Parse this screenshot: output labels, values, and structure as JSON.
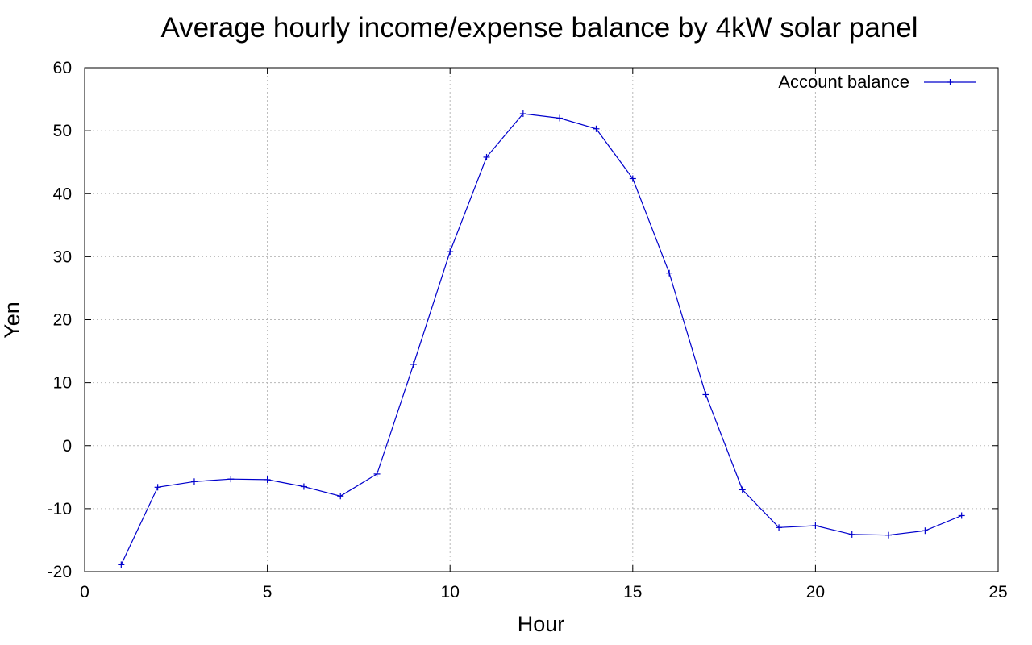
{
  "chart_data": {
    "type": "line",
    "title": "Average hourly income/expense balance by 4kW solar panel",
    "xlabel": "Hour",
    "ylabel": "Yen",
    "xlim": [
      0,
      25
    ],
    "ylim": [
      -20,
      60
    ],
    "xticks": [
      0,
      5,
      10,
      15,
      20,
      25
    ],
    "yticks": [
      -20,
      -10,
      0,
      10,
      20,
      30,
      40,
      50,
      60
    ],
    "grid": true,
    "legend_position": "top-right",
    "series": [
      {
        "name": "Account balance",
        "color": "#0000cc",
        "marker": "plus",
        "x": [
          1,
          2,
          3,
          4,
          5,
          6,
          7,
          8,
          9,
          10,
          11,
          12,
          13,
          14,
          15,
          16,
          17,
          18,
          19,
          20,
          21,
          22,
          23,
          24
        ],
        "y": [
          -18.9,
          -6.6,
          -5.7,
          -5.3,
          -5.4,
          -6.5,
          -8.0,
          -4.5,
          12.9,
          30.8,
          45.8,
          52.7,
          52.0,
          50.3,
          42.4,
          27.4,
          8.1,
          -7.0,
          -13.0,
          -12.7,
          -14.1,
          -14.2,
          -13.5,
          -11.1
        ]
      }
    ]
  }
}
